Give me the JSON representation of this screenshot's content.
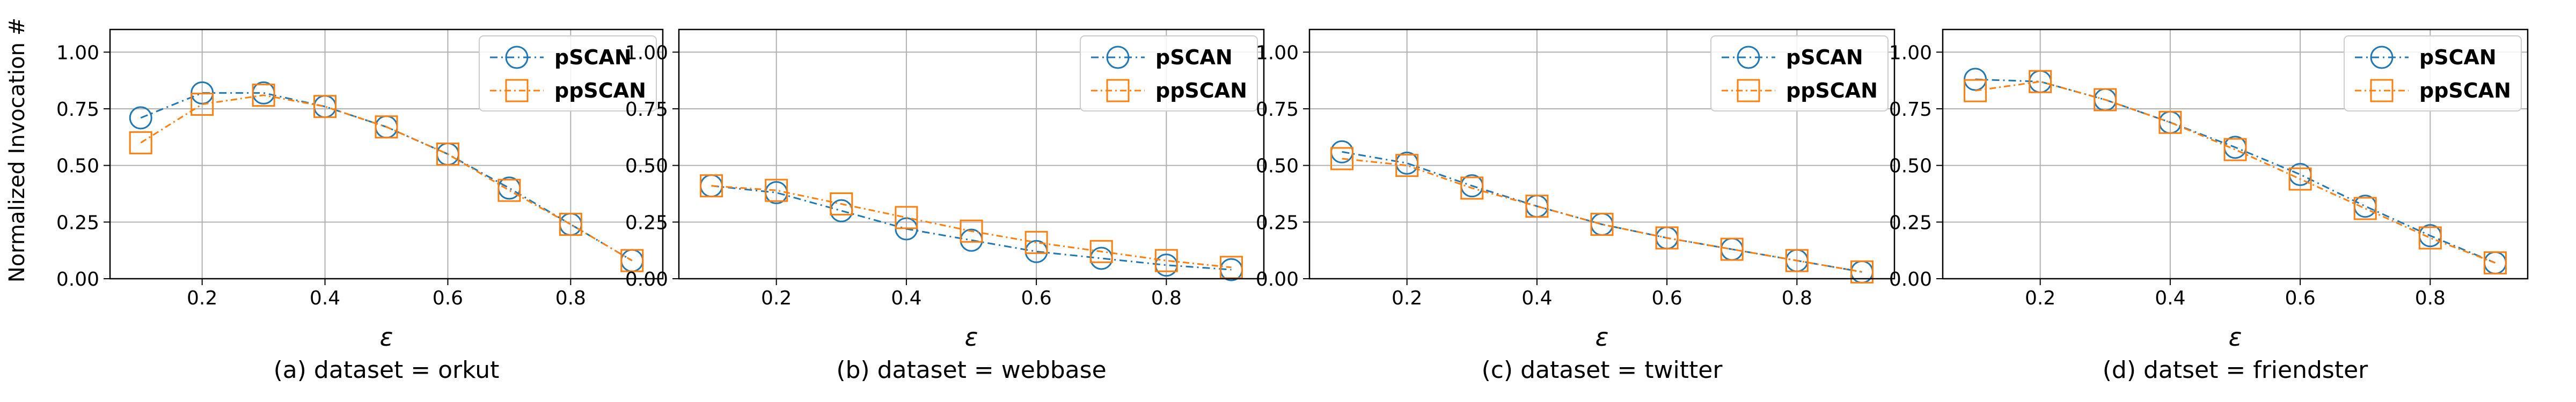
{
  "figure": {
    "ylabel": "Normalized Invocation #",
    "xlabel": "ε"
  },
  "colors": {
    "pSCAN": "#1f77b4",
    "ppSCAN": "#ff7f0e",
    "grid": "#b0b0b0"
  },
  "chart_data": [
    {
      "type": "line",
      "caption": "(a) dataset = orkut",
      "xlabel": "ε",
      "ylabel": "Normalized Invocation #",
      "x": [
        0.1,
        0.2,
        0.3,
        0.4,
        0.5,
        0.6,
        0.7,
        0.8,
        0.9
      ],
      "xticks": [
        "0.2",
        "0.4",
        "0.6",
        "0.8"
      ],
      "yticks": [
        "0.00",
        "0.25",
        "0.50",
        "0.75",
        "1.00"
      ],
      "xlim": [
        0.05,
        0.95
      ],
      "ylim": [
        0,
        1.1
      ],
      "grid": true,
      "legend": "top-right",
      "series": [
        {
          "name": "pSCAN",
          "marker": "circle",
          "values": [
            0.71,
            0.82,
            0.82,
            0.76,
            0.67,
            0.55,
            0.4,
            0.24,
            0.08
          ]
        },
        {
          "name": "ppSCAN",
          "marker": "square",
          "values": [
            0.6,
            0.77,
            0.81,
            0.76,
            0.67,
            0.55,
            0.39,
            0.24,
            0.08
          ]
        }
      ]
    },
    {
      "type": "line",
      "caption": "(b) dataset = webbase",
      "xlabel": "ε",
      "ylabel": "",
      "x": [
        0.1,
        0.2,
        0.3,
        0.4,
        0.5,
        0.6,
        0.7,
        0.8,
        0.9
      ],
      "xticks": [
        "0.2",
        "0.4",
        "0.6",
        "0.8"
      ],
      "yticks": [
        "0.00",
        "0.25",
        "0.50",
        "0.75",
        "1.00"
      ],
      "xlim": [
        0.05,
        0.95
      ],
      "ylim": [
        0,
        1.1
      ],
      "grid": true,
      "legend": "top-right",
      "series": [
        {
          "name": "pSCAN",
          "marker": "circle",
          "values": [
            0.41,
            0.38,
            0.3,
            0.22,
            0.17,
            0.12,
            0.09,
            0.06,
            0.04
          ]
        },
        {
          "name": "ppSCAN",
          "marker": "square",
          "values": [
            0.41,
            0.39,
            0.33,
            0.27,
            0.21,
            0.16,
            0.12,
            0.08,
            0.05
          ]
        }
      ]
    },
    {
      "type": "line",
      "caption": "(c) dataset = twitter",
      "xlabel": "ε",
      "ylabel": "",
      "x": [
        0.1,
        0.2,
        0.3,
        0.4,
        0.5,
        0.6,
        0.7,
        0.8,
        0.9
      ],
      "xticks": [
        "0.2",
        "0.4",
        "0.6",
        "0.8"
      ],
      "yticks": [
        "0.00",
        "0.25",
        "0.50",
        "0.75",
        "1.00"
      ],
      "xlim": [
        0.05,
        0.95
      ],
      "ylim": [
        0,
        1.1
      ],
      "grid": true,
      "legend": "top-right",
      "series": [
        {
          "name": "pSCAN",
          "marker": "circle",
          "values": [
            0.56,
            0.51,
            0.41,
            0.32,
            0.24,
            0.18,
            0.13,
            0.08,
            0.03
          ]
        },
        {
          "name": "ppSCAN",
          "marker": "square",
          "values": [
            0.53,
            0.5,
            0.4,
            0.32,
            0.24,
            0.18,
            0.13,
            0.08,
            0.03
          ]
        }
      ]
    },
    {
      "type": "line",
      "caption": "(d) datset = friendster",
      "xlabel": "ε",
      "ylabel": "",
      "x": [
        0.1,
        0.2,
        0.3,
        0.4,
        0.5,
        0.6,
        0.7,
        0.8,
        0.9
      ],
      "xticks": [
        "0.2",
        "0.4",
        "0.6",
        "0.8"
      ],
      "yticks": [
        "0.00",
        "0.25",
        "0.50",
        "0.75",
        "1.00"
      ],
      "xlim": [
        0.05,
        0.95
      ],
      "ylim": [
        0,
        1.1
      ],
      "grid": true,
      "legend": "top-right",
      "series": [
        {
          "name": "pSCAN",
          "marker": "circle",
          "values": [
            0.88,
            0.87,
            0.79,
            0.69,
            0.58,
            0.46,
            0.32,
            0.19,
            0.07
          ]
        },
        {
          "name": "ppSCAN",
          "marker": "square",
          "values": [
            0.83,
            0.87,
            0.79,
            0.69,
            0.57,
            0.44,
            0.31,
            0.18,
            0.07
          ]
        }
      ]
    }
  ]
}
